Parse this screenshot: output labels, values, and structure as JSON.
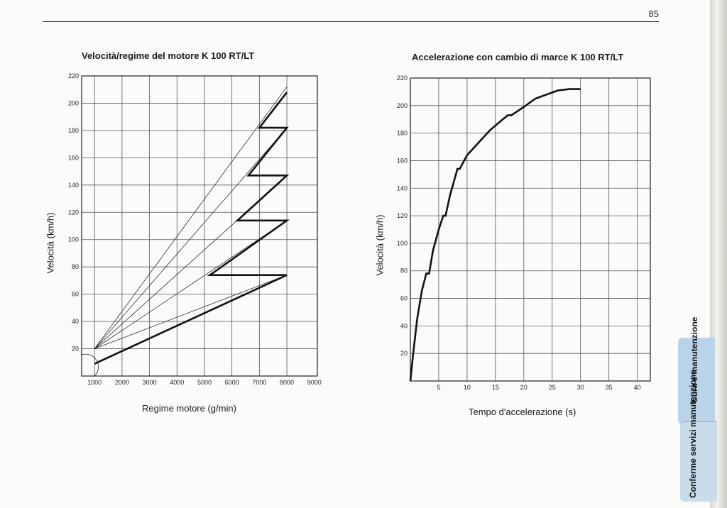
{
  "page": {
    "number": "85"
  },
  "tabs": {
    "cura": "Cura e manutenzione",
    "conferme": "Conferme servizi manutenzione"
  },
  "chart_data": [
    {
      "type": "line",
      "title": "Velocità/regime del motore K 100 RT/LT",
      "xlabel": "Regime motore (g/min)",
      "ylabel": "Velocità (km/h)",
      "xlim": [
        0,
        9000
      ],
      "ylim": [
        0,
        220
      ],
      "x_ticks": [
        1000,
        2000,
        3000,
        4000,
        5000,
        6000,
        7000,
        8000,
        9000
      ],
      "y_ticks": [
        20,
        40,
        60,
        80,
        100,
        120,
        140,
        160,
        180,
        200,
        220
      ],
      "grid": true,
      "series": [
        {
          "values": [
            [
              1000,
              9
            ],
            [
              8000,
              74
            ],
            [
              5200,
              74
            ],
            [
              8000,
              114
            ],
            [
              6200,
              114
            ],
            [
              8000,
              147
            ],
            [
              6600,
              147
            ],
            [
              8000,
              182
            ],
            [
              7000,
              182
            ],
            [
              8000,
              208
            ]
          ]
        },
        {
          "values": [
            [
              1000,
              20
            ],
            [
              8000,
              74
            ]
          ]
        },
        {
          "values": [
            [
              1000,
              20
            ],
            [
              8000,
              114
            ]
          ]
        },
        {
          "values": [
            [
              1000,
              20
            ],
            [
              8000,
              147
            ]
          ]
        },
        {
          "values": [
            [
              1000,
              20
            ],
            [
              8000,
              182
            ]
          ]
        },
        {
          "values": [
            [
              1000,
              20
            ],
            [
              8000,
              212
            ]
          ]
        }
      ]
    },
    {
      "type": "line",
      "title": "Accelerazione con cambio di marce K 100 RT/LT",
      "xlabel": "Tempo d'accelerazione (s)",
      "ylabel": "Velocità (km/h)",
      "xlim": [
        0,
        42
      ],
      "ylim": [
        0,
        220
      ],
      "x_ticks": [
        5,
        10,
        15,
        20,
        25,
        30,
        35,
        40
      ],
      "y_ticks": [
        20,
        40,
        60,
        80,
        100,
        120,
        140,
        160,
        180,
        200,
        220
      ],
      "grid": true,
      "series": [
        {
          "values": [
            [
              0,
              0
            ],
            [
              0.5,
              20
            ],
            [
              1.2,
              45
            ],
            [
              2,
              65
            ],
            [
              2.8,
              78
            ],
            [
              3.3,
              78
            ],
            [
              4,
              95
            ],
            [
              5,
              110
            ],
            [
              5.8,
              120
            ],
            [
              6.2,
              120
            ],
            [
              7,
              135
            ],
            [
              8.3,
              154
            ],
            [
              8.7,
              154
            ],
            [
              10,
              164
            ],
            [
              12,
              173
            ],
            [
              14,
              182
            ],
            [
              16,
              189
            ],
            [
              17.2,
              193
            ],
            [
              17.8,
              193
            ],
            [
              20,
              199
            ],
            [
              22,
              205
            ],
            [
              24,
              208
            ],
            [
              26,
              211
            ],
            [
              28,
              212
            ],
            [
              30,
              212
            ]
          ]
        }
      ]
    }
  ]
}
